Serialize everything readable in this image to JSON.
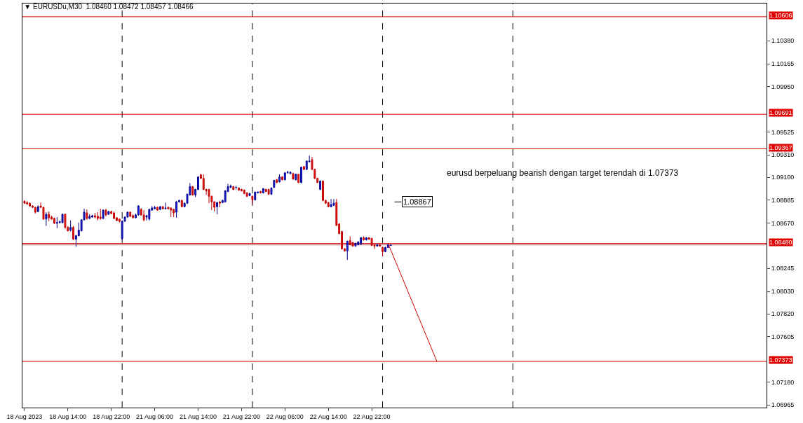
{
  "chart_data": {
    "type": "candlestick",
    "title": "▼ EURUSDu,M30  1.08460 1.08472 1.08457 1.08466",
    "categories": [
      "18 Aug 2023",
      null,
      null,
      null,
      null,
      null,
      null,
      null,
      null,
      null,
      null,
      null,
      null,
      null,
      null,
      null,
      "18 Aug 14:00",
      null,
      null,
      null,
      null,
      null,
      null,
      null,
      null,
      null,
      null,
      null,
      null,
      null,
      null,
      null,
      "18 Aug 22:00",
      null,
      null,
      null,
      null,
      null,
      null,
      null,
      null,
      null,
      null,
      null,
      null,
      null,
      null,
      null,
      "21 Aug 06:00",
      null,
      null,
      null,
      null,
      null,
      null,
      null,
      null,
      null,
      null,
      null,
      null,
      null,
      null,
      null,
      "21 Aug 14:00",
      null,
      null,
      null,
      null,
      null,
      null,
      null,
      null,
      null,
      null,
      null,
      null,
      null,
      null,
      null,
      "21 Aug 22:00",
      null,
      null,
      null,
      null,
      null,
      null,
      null,
      null,
      null,
      null,
      null,
      null,
      null,
      null,
      null,
      "22 Aug 06:00",
      null,
      null,
      null,
      null,
      null,
      null,
      null,
      null,
      null,
      null,
      null,
      null,
      null,
      null,
      null,
      "22 Aug 14:00",
      null,
      null,
      null,
      null,
      null,
      null,
      null,
      null,
      null,
      null,
      null,
      null,
      null,
      null,
      null,
      "22 Aug 22:00",
      null,
      null,
      null,
      null,
      null,
      null,
      null,
      null,
      null,
      null,
      null,
      null,
      null,
      null,
      null,
      null,
      null,
      null,
      null,
      null,
      null,
      null,
      null,
      null,
      null,
      null,
      null,
      null,
      null,
      null,
      null,
      null,
      null,
      null,
      null,
      null,
      null,
      null,
      null,
      null,
      null,
      null,
      null,
      null,
      null,
      null,
      null,
      null,
      null,
      null,
      null,
      null,
      null,
      null,
      null,
      null,
      null,
      null,
      null,
      null,
      null,
      null,
      null,
      null,
      null,
      null,
      null,
      null,
      null,
      null,
      null,
      null,
      null,
      null,
      null,
      null,
      null,
      null,
      null,
      null,
      null,
      null,
      null,
      null,
      null,
      null,
      null,
      null,
      null,
      null,
      null,
      null,
      null,
      null,
      null,
      null,
      null,
      null,
      null,
      null,
      null,
      null,
      null,
      null,
      null,
      null,
      null,
      null,
      null,
      null,
      null,
      null,
      null,
      null,
      null,
      null,
      null,
      null,
      null,
      null,
      null,
      null,
      null,
      null,
      null,
      null,
      null,
      null,
      null,
      null,
      null,
      null,
      null,
      null,
      null,
      null,
      null,
      null,
      null,
      null,
      null,
      null,
      null,
      null,
      null
    ],
    "ohlc": [
      [
        1.08876,
        1.08883,
        1.0885,
        1.08857
      ],
      [
        1.08863,
        1.08876,
        1.08844,
        1.0885
      ],
      [
        1.08857,
        1.08863,
        1.08824,
        1.08831
      ],
      [
        1.08831,
        1.08837,
        1.08811,
        1.08818
      ],
      [
        1.08818,
        1.08824,
        1.0876,
        1.08773
      ],
      [
        1.08779,
        1.08837,
        1.08773,
        1.08824
      ],
      [
        1.08831,
        1.08863,
        1.08811,
        1.08818
      ],
      [
        1.08818,
        1.08824,
        1.08701,
        1.08708
      ],
      [
        1.08708,
        1.08773,
        1.08643,
        1.08753
      ],
      [
        1.08753,
        1.08779,
        1.08688,
        1.08721
      ],
      [
        1.08727,
        1.0874,
        1.08701,
        1.08708
      ],
      [
        1.08714,
        1.08721,
        1.08662,
        1.08669
      ],
      [
        1.08669,
        1.08727,
        1.08623,
        1.08675
      ],
      [
        1.08675,
        1.08695,
        1.08669,
        1.08682
      ],
      [
        1.08675,
        1.0876,
        1.08669,
        1.08753
      ],
      [
        1.08753,
        1.0876,
        1.08617,
        1.0863
      ],
      [
        1.0863,
        1.08643,
        1.08591,
        1.08598
      ],
      [
        1.08604,
        1.08695,
        1.08591,
        1.0863
      ],
      [
        1.0863,
        1.08643,
        1.08513,
        1.0852
      ],
      [
        1.0852,
        1.08559,
        1.08449,
        1.08552
      ],
      [
        1.08552,
        1.08675,
        1.08546,
        1.08604
      ],
      [
        1.08598,
        1.08708,
        1.08591,
        1.08701
      ],
      [
        1.08701,
        1.08805,
        1.08695,
        1.08773
      ],
      [
        1.08766,
        1.08799,
        1.08701,
        1.08714
      ],
      [
        1.08714,
        1.08753,
        1.08708,
        1.08734
      ],
      [
        1.08727,
        1.08747,
        1.08721,
        1.0874
      ],
      [
        1.0874,
        1.08766,
        1.08714,
        1.08727
      ],
      [
        1.08734,
        1.08773,
        1.08695,
        1.08714
      ],
      [
        1.08727,
        1.08805,
        1.08701,
        1.08714
      ],
      [
        1.08714,
        1.08799,
        1.08708,
        1.08792
      ],
      [
        1.08792,
        1.08805,
        1.08734,
        1.08747
      ],
      [
        1.08753,
        1.08786,
        1.08747,
        1.08779
      ],
      [
        1.08779,
        1.08786,
        1.08753,
        1.0876
      ],
      [
        1.08766,
        1.08779,
        1.08708,
        1.08714
      ],
      [
        1.08721,
        1.08727,
        1.08688,
        1.08695
      ],
      [
        1.08708,
        1.08714,
        1.08675,
        1.08688
      ],
      [
        1.08526,
        1.08695,
        1.08513,
        1.08688
      ],
      [
        1.08688,
        1.08734,
        1.08682,
        1.08727
      ],
      [
        1.08727,
        1.08779,
        1.08721,
        1.08773
      ],
      [
        1.08773,
        1.08779,
        1.08727,
        1.08734
      ],
      [
        1.0874,
        1.08753,
        1.08714,
        1.08721
      ],
      [
        1.08721,
        1.0876,
        1.08714,
        1.08747
      ],
      [
        1.08747,
        1.08837,
        1.0874,
        1.08831
      ],
      [
        1.08799,
        1.08811,
        1.0874,
        1.08747
      ],
      [
        1.08747,
        1.08792,
        1.08688,
        1.08701
      ],
      [
        1.08727,
        1.08747,
        1.08695,
        1.0874
      ],
      [
        1.08708,
        1.08805,
        1.08695,
        1.08799
      ],
      [
        1.08792,
        1.08831,
        1.08786,
        1.08811
      ],
      [
        1.08805,
        1.08831,
        1.08799,
        1.08818
      ],
      [
        1.08818,
        1.08824,
        1.08786,
        1.08792
      ],
      [
        1.08799,
        1.08831,
        1.08792,
        1.08824
      ],
      [
        1.08824,
        1.08831,
        1.08799,
        1.08805
      ],
      [
        1.08805,
        1.08863,
        1.08799,
        1.08811
      ],
      [
        1.08818,
        1.08824,
        1.08799,
        1.08805
      ],
      [
        1.08811,
        1.08818,
        1.08727,
        1.08792
      ],
      [
        1.08799,
        1.08805,
        1.08727,
        1.08766
      ],
      [
        1.08773,
        1.08876,
        1.08721,
        1.0887
      ],
      [
        1.0887,
        1.08889,
        1.08863,
        1.08883
      ],
      [
        1.08883,
        1.08889,
        1.08818,
        1.08824
      ],
      [
        1.08824,
        1.08863,
        1.08818,
        1.08857
      ],
      [
        1.08857,
        1.08948,
        1.0885,
        1.08941
      ],
      [
        1.08935,
        1.09045,
        1.08928,
        1.09012
      ],
      [
        1.09012,
        1.09019,
        1.08928,
        1.08935
      ],
      [
        1.08935,
        1.08993,
        1.08915,
        1.08986
      ],
      [
        1.08986,
        1.0911,
        1.0898,
        1.09103
      ],
      [
        1.09123,
        1.09135,
        1.09084,
        1.0909
      ],
      [
        1.0909,
        1.09129,
        1.0898,
        1.08986
      ],
      [
        1.08986,
        1.08993,
        1.08935,
        1.08973
      ],
      [
        1.08986,
        1.08993,
        1.08857,
        1.08922
      ],
      [
        1.08922,
        1.08928,
        1.08792,
        1.0887
      ],
      [
        1.0887,
        1.08876,
        1.08779,
        1.08818
      ],
      [
        1.08824,
        1.0887,
        1.08753,
        1.08863
      ],
      [
        1.0887,
        1.08876,
        1.08818,
        1.08857
      ],
      [
        1.08863,
        1.08889,
        1.08857,
        1.08883
      ],
      [
        1.0887,
        1.0898,
        1.08863,
        1.08973
      ],
      [
        1.08967,
        1.09038,
        1.08961,
        1.09012
      ],
      [
        1.09006,
        1.09032,
        1.08999,
        1.09019
      ],
      [
        1.09012,
        1.09019,
        1.0898,
        1.08986
      ],
      [
        1.09006,
        1.09019,
        1.08986,
        1.09006
      ],
      [
        1.08999,
        1.09006,
        1.08973,
        1.0898
      ],
      [
        1.08986,
        1.08993,
        1.08967,
        1.08973
      ],
      [
        1.0898,
        1.08986,
        1.08941,
        1.08948
      ],
      [
        1.08954,
        1.08961,
        1.08915,
        1.08922
      ],
      [
        1.08928,
        1.08954,
        1.08922,
        1.08948
      ],
      [
        1.08922,
        1.08928,
        1.0885,
        1.08889
      ],
      [
        1.08889,
        1.08967,
        1.08883,
        1.08961
      ],
      [
        1.08954,
        1.08967,
        1.08948,
        1.08961
      ],
      [
        1.08967,
        1.08973,
        1.08948,
        1.08954
      ],
      [
        1.08954,
        1.08999,
        1.08948,
        1.08993
      ],
      [
        1.08986,
        1.08993,
        1.08961,
        1.08967
      ],
      [
        1.08986,
        1.08993,
        1.08935,
        1.08941
      ],
      [
        1.08941,
        1.09006,
        1.08935,
        1.08999
      ],
      [
        1.09006,
        1.09077,
        1.08999,
        1.09071
      ],
      [
        1.09077,
        1.09084,
        1.09045,
        1.09051
      ],
      [
        1.09058,
        1.09129,
        1.09051,
        1.09103
      ],
      [
        1.09103,
        1.0911,
        1.09071,
        1.09077
      ],
      [
        1.09077,
        1.09148,
        1.09071,
        1.09142
      ],
      [
        1.09142,
        1.09161,
        1.09135,
        1.09148
      ],
      [
        1.09135,
        1.09155,
        1.09129,
        1.09148
      ],
      [
        1.09135,
        1.09142,
        1.09077,
        1.09084
      ],
      [
        1.09077,
        1.09135,
        1.09071,
        1.09129
      ],
      [
        1.09129,
        1.09135,
        1.09045,
        1.09051
      ],
      [
        1.09051,
        1.092,
        1.09045,
        1.09194
      ],
      [
        1.092,
        1.09207,
        1.09168,
        1.09174
      ],
      [
        1.09174,
        1.09259,
        1.09168,
        1.09252
      ],
      [
        1.09246,
        1.09304,
        1.09239,
        1.09252
      ],
      [
        1.09265,
        1.09291,
        1.09168,
        1.09174
      ],
      [
        1.09174,
        1.09181,
        1.09084,
        1.0909
      ],
      [
        1.0909,
        1.09097,
        1.09045,
        1.09051
      ],
      [
        1.08986,
        1.09071,
        1.0898,
        1.09064
      ],
      [
        1.09064,
        1.09071,
        1.08876,
        1.08883
      ],
      [
        1.08883,
        1.08889,
        1.0885,
        1.08857
      ],
      [
        1.08863,
        1.0887,
        1.08818,
        1.08824
      ],
      [
        1.08824,
        1.08896,
        1.08818,
        1.08844
      ],
      [
        1.08837,
        1.08896,
        1.08831,
        1.08857
      ],
      [
        1.08863,
        1.08896,
        1.08643,
        1.08649
      ],
      [
        1.08662,
        1.08669,
        1.08565,
        1.08572
      ],
      [
        1.08591,
        1.08598,
        1.08423,
        1.08429
      ],
      [
        1.08429,
        1.08436,
        1.08403,
        1.0841
      ],
      [
        1.0841,
        1.08507,
        1.08325,
        1.085
      ],
      [
        1.08507,
        1.08546,
        1.08462,
        1.08468
      ],
      [
        1.08487,
        1.08494,
        1.08449,
        1.08455
      ],
      [
        1.08455,
        1.08487,
        1.08449,
        1.08481
      ],
      [
        1.08468,
        1.085,
        1.08462,
        1.08494
      ],
      [
        1.08475,
        1.08539,
        1.08468,
        1.08533
      ],
      [
        1.08533,
        1.08546,
        1.08507,
        1.08513
      ],
      [
        1.08513,
        1.08539,
        1.08507,
        1.08533
      ],
      [
        1.08533,
        1.08539,
        1.08513,
        1.0852
      ],
      [
        1.08526,
        1.08533,
        1.08455,
        1.08462
      ],
      [
        1.08468,
        1.08475,
        1.08429,
        1.08455
      ],
      [
        1.08455,
        1.08475,
        1.08449,
        1.08468
      ],
      [
        1.08468,
        1.08475,
        1.08449,
        1.08455
      ],
      [
        1.08442,
        1.08449,
        1.08364,
        1.08403
      ],
      [
        1.08403,
        1.08449,
        1.08397,
        1.08442
      ],
      [
        1.08442,
        1.08475,
        1.08436,
        1.08468
      ],
      [
        1.0846,
        1.08472,
        1.08457,
        1.08466
      ],
      null,
      null,
      null,
      null,
      null,
      null,
      null,
      null,
      null,
      null,
      null,
      null,
      null,
      null,
      null,
      null,
      null,
      null,
      null,
      null,
      null,
      null,
      null,
      null,
      null,
      null,
      null,
      null,
      null,
      null,
      null,
      null,
      null,
      null,
      null,
      null,
      null,
      null,
      null,
      null,
      null,
      null,
      null,
      null,
      null,
      null,
      null,
      null,
      null,
      null,
      null,
      null,
      null,
      null,
      null,
      null,
      null,
      null,
      null,
      null,
      null,
      null,
      null,
      null,
      null,
      null,
      null,
      null,
      null,
      null,
      null,
      null,
      null,
      null,
      null,
      null,
      null,
      null,
      null,
      null,
      null,
      null,
      null,
      null,
      null,
      null,
      null,
      null,
      null,
      null,
      null,
      null,
      null,
      null,
      null,
      null,
      null,
      null,
      null,
      null,
      null,
      null,
      null,
      null,
      null,
      null,
      null,
      null,
      null,
      null,
      null,
      null,
      null,
      null,
      null,
      null,
      null,
      null,
      null,
      null,
      null,
      null,
      null,
      null,
      null,
      null,
      null,
      null,
      null,
      null,
      null,
      null,
      null,
      null,
      null,
      null,
      null,
      null
    ],
    "series": [
      {
        "type": "line",
        "color": "#d00000",
        "values": [
          null,
          null,
          null,
          null,
          null,
          null,
          null,
          null,
          null,
          null,
          null,
          null,
          null,
          null,
          null,
          null,
          null,
          null,
          null,
          null,
          null,
          null,
          null,
          null,
          null,
          null,
          null,
          null,
          null,
          null,
          null,
          null,
          null,
          null,
          null,
          null,
          null,
          null,
          null,
          null,
          null,
          null,
          null,
          null,
          null,
          null,
          null,
          null,
          null,
          null,
          null,
          null,
          null,
          null,
          null,
          null,
          null,
          null,
          null,
          null,
          null,
          null,
          null,
          null,
          null,
          null,
          null,
          null,
          null,
          null,
          null,
          null,
          null,
          null,
          null,
          null,
          null,
          null,
          null,
          null,
          null,
          null,
          null,
          null,
          null,
          null,
          null,
          null,
          null,
          null,
          null,
          null,
          null,
          null,
          null,
          null,
          null,
          null,
          null,
          null,
          null,
          null,
          null,
          null,
          null,
          null,
          null,
          null,
          null,
          null,
          null,
          null,
          null,
          null,
          null,
          null,
          null,
          null,
          null,
          null,
          null,
          null,
          null,
          null,
          null,
          null,
          null,
          null,
          null,
          null,
          null,
          null,
          null,
          null,
          1.0848,
          null,
          null,
          null,
          null,
          null,
          null,
          null,
          null,
          null,
          null,
          null,
          null,
          null,
          null,
          null,
          null,
          null,
          1.07373,
          null,
          null,
          null,
          null,
          null,
          null,
          null,
          null,
          null,
          null,
          null,
          null,
          null,
          null,
          null,
          null,
          null,
          null,
          null,
          null,
          null,
          null,
          null,
          null,
          null,
          null,
          null,
          null,
          null,
          null,
          null,
          null,
          null,
          null,
          null,
          null,
          null,
          null,
          null,
          null,
          null,
          null,
          null,
          null,
          null,
          null,
          null,
          null,
          null,
          null,
          null,
          null,
          null,
          null,
          null,
          null,
          null,
          null,
          null,
          null,
          null,
          null,
          null,
          null,
          null,
          null,
          null,
          null,
          null,
          null,
          null,
          null,
          null,
          null,
          null,
          null,
          null,
          null,
          null,
          null,
          null,
          null,
          null,
          null,
          null,
          null,
          null,
          null,
          null,
          null,
          null,
          null,
          null,
          null,
          null,
          null,
          null,
          null,
          null,
          null,
          null,
          null,
          null,
          null,
          null,
          null,
          null,
          null,
          null,
          null,
          null,
          null,
          null,
          null,
          null,
          null,
          null,
          null,
          null,
          null,
          null
        ]
      }
    ],
    "ylim": [
      1.0694,
      1.1073
    ],
    "yticks": [
      {
        "value": 1.1038,
        "label": "1.10380"
      },
      {
        "value": 1.10165,
        "label": "1.10165"
      },
      {
        "value": 1.0995,
        "label": "1.09950"
      },
      {
        "value": 1.09525,
        "label": "1.09525"
      },
      {
        "value": 1.0931,
        "label": "1.09310"
      },
      {
        "value": 1.091,
        "label": "1.09100"
      },
      {
        "value": 1.08885,
        "label": "1.08885"
      },
      {
        "value": 1.0867,
        "label": "1.08670"
      },
      {
        "value": 1.08245,
        "label": "1.08245"
      },
      {
        "value": 1.0803,
        "label": "1.08030"
      },
      {
        "value": 1.0782,
        "label": "1.07820"
      },
      {
        "value": 1.07605,
        "label": "1.07605"
      },
      {
        "value": 1.0718,
        "label": "1.07180"
      },
      {
        "value": 1.06965,
        "label": "1.06965"
      }
    ],
    "ref_lines": [
      {
        "axis": "y",
        "value": 1.10606,
        "label": "1.10606",
        "color": "#e00000"
      },
      {
        "axis": "y",
        "value": 1.09691,
        "label": "1.09691",
        "color": "#e00000"
      },
      {
        "axis": "y",
        "value": 1.09367,
        "label": "1.09367",
        "color": "#e00000"
      },
      {
        "axis": "y",
        "value": 1.0848,
        "label": "1.08480",
        "color": "#e00000"
      },
      {
        "axis": "y",
        "value": 1.08466,
        "color": "#b05050"
      },
      {
        "axis": "y",
        "value": 1.07373,
        "label": "1.07373",
        "color": "#e00000"
      }
    ],
    "annotations": [
      "eurusd berpeluang bearish dengan target terendah di 1.07373",
      "1.08867"
    ]
  }
}
